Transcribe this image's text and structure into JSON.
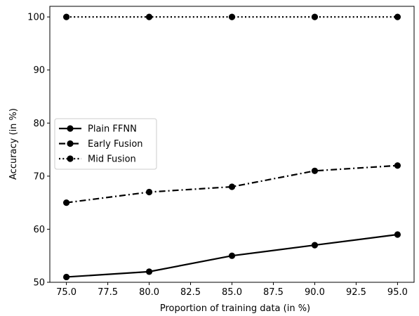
{
  "chart_data": {
    "type": "line",
    "title": "",
    "xlabel": "Proportion of training data (in %)",
    "ylabel": "Accuracy (in %)",
    "xlim": [
      74.0,
      96.0
    ],
    "ylim": [
      50,
      102
    ],
    "x_ticks": [
      "75.0",
      "77.5",
      "80.0",
      "82.5",
      "85.0",
      "87.5",
      "90.0",
      "92.5",
      "95.0"
    ],
    "y_ticks": [
      "50",
      "60",
      "70",
      "80",
      "90",
      "100"
    ],
    "x": [
      75,
      80,
      85,
      90,
      95
    ],
    "grid": false,
    "legend_position": "center-left",
    "series": [
      {
        "name": "Plain FFNN",
        "style": "solid",
        "values": [
          51,
          52,
          55,
          57,
          59
        ]
      },
      {
        "name": "Early Fusion",
        "style": "dashdot",
        "values": [
          65,
          67,
          68,
          71,
          72
        ]
      },
      {
        "name": "Mid Fusion",
        "style": "dotted",
        "values": [
          100,
          100,
          100,
          100,
          100
        ]
      }
    ],
    "colors": {
      "line": "#000000",
      "marker": "#000000",
      "axes": "#000000",
      "background": "#ffffff"
    }
  }
}
